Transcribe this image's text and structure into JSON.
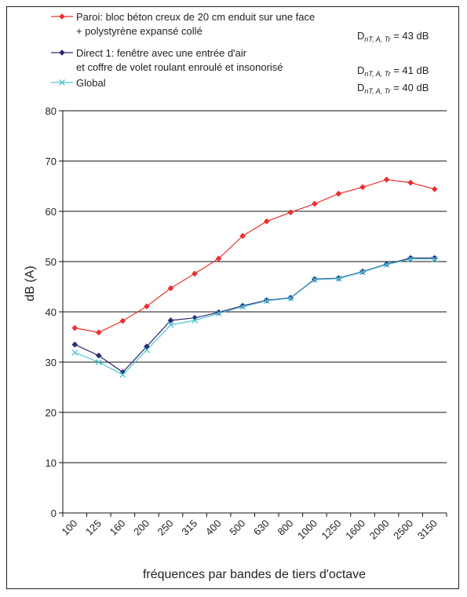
{
  "chart_data": {
    "type": "line",
    "title": "",
    "xlabel": "fréquences par bandes de tiers d'octave",
    "ylabel": "dB (A)",
    "ylim": [
      0,
      80
    ],
    "yticks": [
      0,
      10,
      20,
      30,
      40,
      50,
      60,
      70,
      80
    ],
    "grid": true,
    "legend_position": "top",
    "categories": [
      "100",
      "125",
      "160",
      "200",
      "250",
      "315",
      "400",
      "500",
      "630",
      "800",
      "1000",
      "1250",
      "1600",
      "2000",
      "2500",
      "3150"
    ],
    "series": [
      {
        "name_lines": [
          "Paroi: bloc béton creux de 20 cm enduit sur une face",
          "+ polystyrène expansé collé"
        ],
        "color": "#e8312f",
        "marker": "diamond",
        "rating": {
          "main": "D",
          "sub": "nT, A, Tr",
          "value": "= 43 dB"
        },
        "values": [
          36.8,
          35.9,
          38.2,
          41.1,
          44.7,
          47.6,
          50.6,
          55.1,
          58.0,
          59.8,
          61.5,
          63.5,
          64.8,
          66.3,
          65.7,
          64.4
        ]
      },
      {
        "name_lines": [
          "Direct 1: fenêtre avec une entrée d'air",
          "et coffre de volet roulant enroulé et insonorisé"
        ],
        "color": "#2e2a72",
        "marker": "diamond",
        "rating": {
          "main": "D",
          "sub": "nT, A, Tr",
          "value": "= 41 dB"
        },
        "values": [
          33.5,
          31.3,
          28.0,
          33.1,
          38.3,
          38.8,
          39.9,
          41.2,
          42.3,
          42.8,
          46.5,
          46.7,
          48.0,
          49.5,
          50.7,
          50.7
        ]
      },
      {
        "name_lines": [
          "Global"
        ],
        "color": "#4ec3d8",
        "marker": "x",
        "rating": {
          "main": "D",
          "sub": "nT, A, Tr",
          "value": "= 40 dB"
        },
        "values": [
          31.9,
          30.0,
          27.5,
          32.4,
          37.4,
          38.3,
          39.7,
          41.0,
          42.2,
          42.7,
          46.4,
          46.6,
          47.9,
          49.4,
          50.5,
          50.5
        ]
      }
    ]
  }
}
